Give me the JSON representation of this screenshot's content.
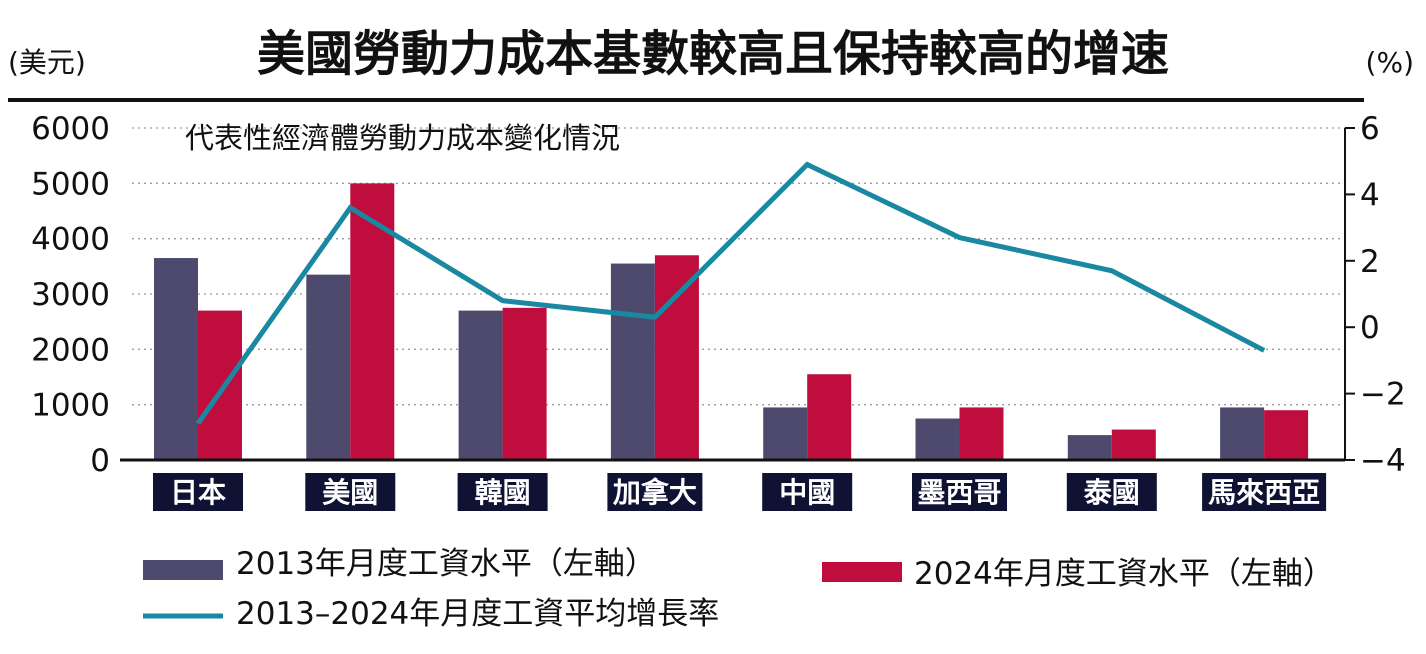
{
  "chart_data": {
    "type": "bar",
    "title": "美國勞動力成本基數較高且保持較高的增速",
    "subtitle": "代表性經濟體勞動力成本變化情況",
    "y_left_label": "(美元)",
    "y_right_label": "(%)",
    "categories": [
      "日本",
      "美國",
      "韓國",
      "加拿大",
      "中國",
      "墨西哥",
      "泰國",
      "馬來西亞"
    ],
    "ylim_left": [
      0,
      6000
    ],
    "ylim_right": [
      -4,
      6
    ],
    "yticks_left": [
      "0",
      "1000",
      "2000",
      "3000",
      "4000",
      "5000",
      "6000"
    ],
    "yticks_right": [
      "−4",
      "−2",
      "0",
      "2",
      "4",
      "6"
    ],
    "grid": true,
    "legend_placement": "bottom",
    "series": [
      {
        "name": "2013年月度工資水平（左軸）",
        "type": "bar",
        "axis": "left",
        "color": "#4d4a6e",
        "values": [
          3650,
          3350,
          2700,
          3550,
          950,
          750,
          450,
          950
        ]
      },
      {
        "name": "2024年月度工資水平（左軸）",
        "type": "bar",
        "axis": "left",
        "color": "#bf0d3e",
        "values": [
          2700,
          5000,
          2750,
          3700,
          1550,
          950,
          550,
          900
        ]
      },
      {
        "name": "2013–2024年月度工資平均增長率",
        "type": "line",
        "axis": "right",
        "color": "#1a88a0",
        "values": [
          -2.9,
          3.6,
          0.8,
          0.3,
          4.9,
          2.7,
          1.7,
          -0.7
        ]
      }
    ]
  }
}
